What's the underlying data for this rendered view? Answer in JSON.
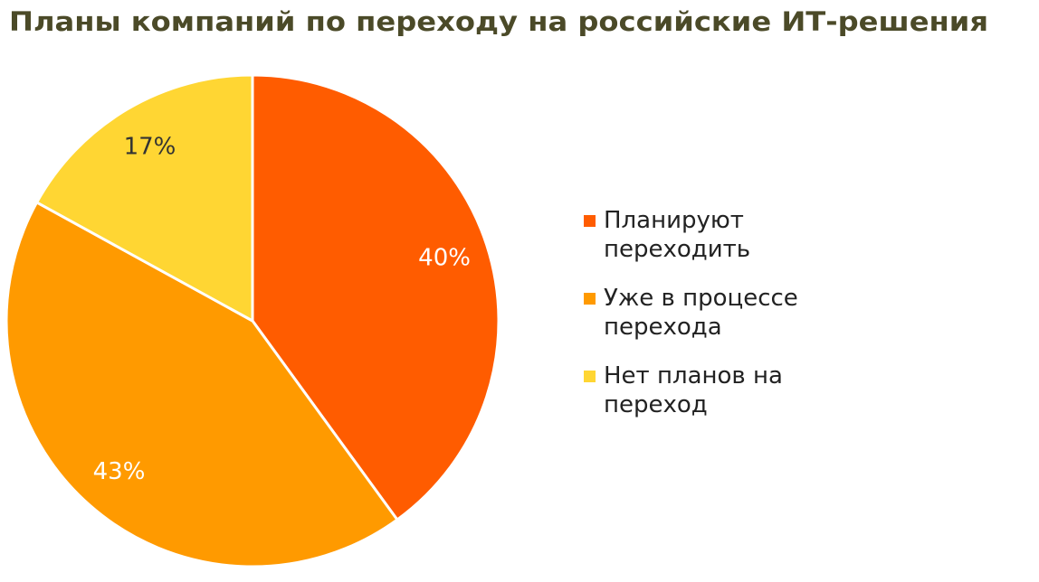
{
  "chart_data": {
    "type": "pie",
    "title": "Планы компаний по переходу на российские ИТ-решения",
    "categories": [
      "Планируют переходить",
      "Уже в процессе перехода",
      "Нет планов на переход"
    ],
    "values": [
      40,
      43,
      17
    ],
    "value_labels": [
      "40%",
      "43%",
      "17%"
    ],
    "colors": [
      "#ff5c00",
      "#ff9a00",
      "#ffd633"
    ],
    "value_label_colors": [
      "#ffffff",
      "#ffffff",
      "#333333"
    ],
    "legend": "right"
  }
}
